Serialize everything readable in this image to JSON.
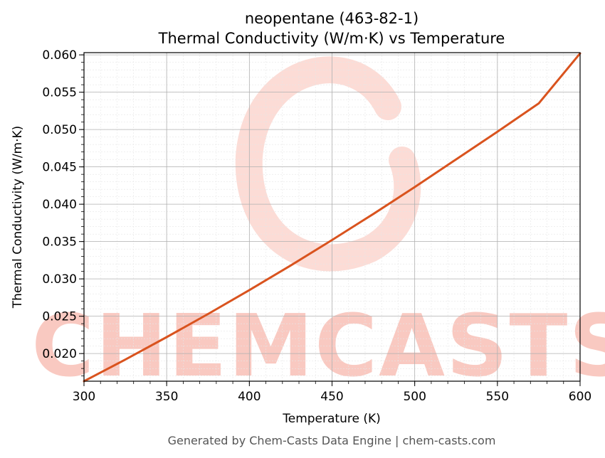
{
  "chart_data": {
    "type": "line",
    "title_line1": "neopentane (463-82-1)",
    "title_line2": "Thermal Conductivity (W/m·K) vs Temperature",
    "xlabel": "Temperature (K)",
    "ylabel": "Thermal Conductivity (W/m·K)",
    "xlim": [
      300,
      600
    ],
    "ylim": [
      0.0163,
      0.0603
    ],
    "xticks": [
      300,
      350,
      400,
      450,
      500,
      550,
      600
    ],
    "xtick_labels": [
      "300",
      "350",
      "400",
      "450",
      "500",
      "550",
      "600"
    ],
    "yticks": [
      0.02,
      0.025,
      0.03,
      0.035,
      0.04,
      0.045,
      0.05,
      0.055,
      0.06
    ],
    "ytick_labels": [
      "0.020",
      "0.025",
      "0.030",
      "0.035",
      "0.040",
      "0.045",
      "0.050",
      "0.055",
      "0.060"
    ],
    "grid": true,
    "minor_grid": true,
    "series": [
      {
        "color": "#d9531e",
        "x": [
          300,
          325,
          350,
          375,
          400,
          425,
          450,
          475,
          500,
          525,
          550,
          575,
          600
        ],
        "y": [
          0.0163,
          0.0192,
          0.0222,
          0.0253,
          0.0285,
          0.0318,
          0.0352,
          0.0387,
          0.0423,
          0.046,
          0.0497,
          0.0535,
          0.0602
        ]
      }
    ]
  },
  "watermark": {
    "text": "CHEMCASTS",
    "color": "#f9c9c1"
  },
  "footer": "Generated by Chem-Casts Data Engine | chem-casts.com"
}
